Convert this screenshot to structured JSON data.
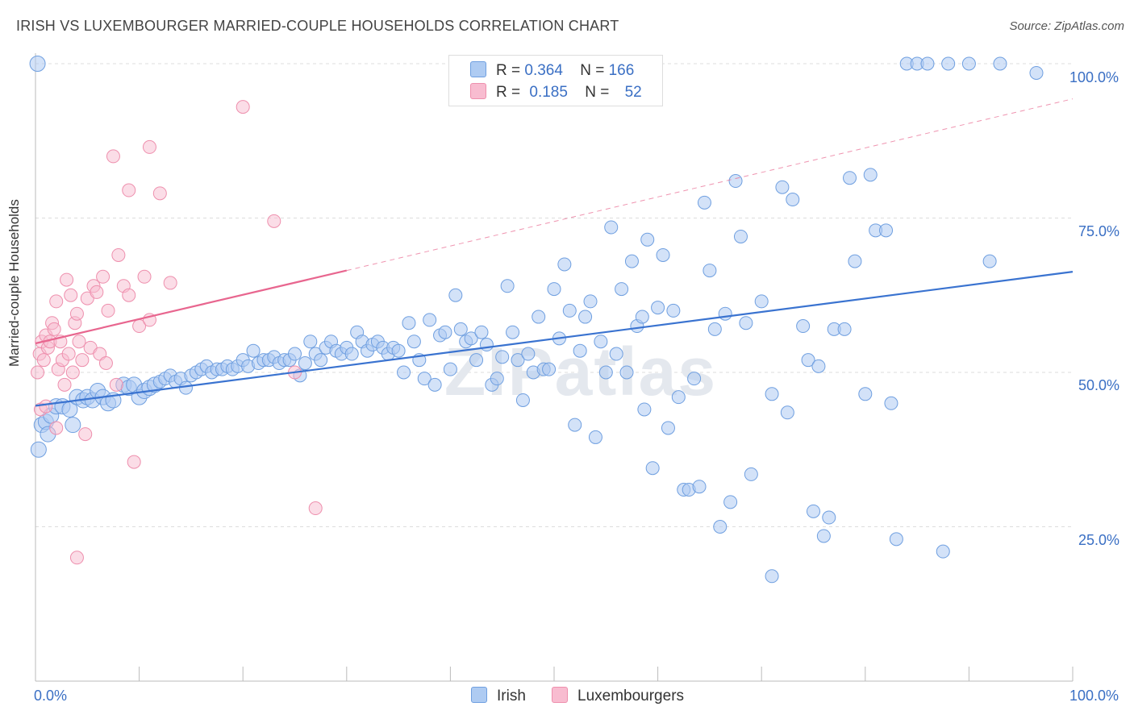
{
  "title": "IRISH VS LUXEMBOURGER MARRIED-COUPLE HOUSEHOLDS CORRELATION CHART",
  "source": "Source: ZipAtlas.com",
  "watermark": "ZIPatlas",
  "legend": {
    "rows": [
      {
        "r_label": "R =",
        "r_value": "0.364",
        "n_label": "N =",
        "n_value": "166"
      },
      {
        "r_label": "R =",
        "r_value": "0.185",
        "n_label": "N =",
        "n_value": "52"
      }
    ]
  },
  "bottom_legend": [
    "Irish",
    "Luxembourgers"
  ],
  "colors": {
    "irish_fill": "#aecbf2",
    "irish_stroke": "#6f9fe0",
    "irish_line": "#3a73d0",
    "lux_fill": "#f8bcd0",
    "lux_stroke": "#ee8fad",
    "lux_line": "#e8668f",
    "tick_label": "#3a6fc4",
    "grid": "#dddddd"
  },
  "chart_data": {
    "type": "scatter",
    "xlabel": "",
    "ylabel": "Married-couple Households",
    "xlim": [
      0,
      100
    ],
    "ylim": [
      0,
      100
    ],
    "x_tick_labels": [
      "0.0%",
      "100.0%"
    ],
    "y_tick_labels": [
      "25.0%",
      "50.0%",
      "75.0%",
      "100.0%"
    ],
    "y_ticks": [
      25,
      50,
      75,
      100
    ],
    "grid": true,
    "series": [
      {
        "name": "Irish",
        "trend": {
          "x": [
            0,
            100
          ],
          "y": [
            44.6,
            66.3
          ]
        },
        "points": [
          [
            0.3,
            37.5
          ],
          [
            0.6,
            41.5
          ],
          [
            1,
            42
          ],
          [
            1.2,
            40
          ],
          [
            1.5,
            43
          ],
          [
            2,
            44.5
          ],
          [
            2.6,
            44.5
          ],
          [
            3.3,
            44
          ],
          [
            4,
            46
          ],
          [
            3.6,
            41.5
          ],
          [
            4.6,
            45.5
          ],
          [
            5,
            46
          ],
          [
            5.5,
            45.5
          ],
          [
            6,
            47
          ],
          [
            6.5,
            46
          ],
          [
            7,
            45
          ],
          [
            7.5,
            45.5
          ],
          [
            8.5,
            48
          ],
          [
            9,
            47.5
          ],
          [
            9.5,
            48
          ],
          [
            10,
            46
          ],
          [
            10.5,
            47
          ],
          [
            11,
            47.5
          ],
          [
            11.5,
            48
          ],
          [
            12,
            48.5
          ],
          [
            12.5,
            49
          ],
          [
            13,
            49.5
          ],
          [
            13.5,
            48.5
          ],
          [
            14,
            49
          ],
          [
            14.5,
            47.5
          ],
          [
            15,
            49.5
          ],
          [
            15.5,
            50
          ],
          [
            16,
            50.5
          ],
          [
            16.5,
            51
          ],
          [
            17,
            50
          ],
          [
            17.5,
            50.5
          ],
          [
            18,
            50.5
          ],
          [
            18.5,
            51
          ],
          [
            19,
            50.5
          ],
          [
            19.5,
            51
          ],
          [
            20,
            52
          ],
          [
            20.5,
            51
          ],
          [
            21,
            53.5
          ],
          [
            21.5,
            51.5
          ],
          [
            22,
            52
          ],
          [
            22.5,
            52
          ],
          [
            23,
            52.5
          ],
          [
            23.5,
            51.5
          ],
          [
            24,
            52
          ],
          [
            24.5,
            52
          ],
          [
            25,
            53
          ],
          [
            25.5,
            49.5
          ],
          [
            26,
            51.5
          ],
          [
            26.5,
            55
          ],
          [
            27,
            53
          ],
          [
            27.5,
            52
          ],
          [
            28,
            54
          ],
          [
            28.5,
            55
          ],
          [
            29,
            53.5
          ],
          [
            29.5,
            53
          ],
          [
            30,
            54
          ],
          [
            30.5,
            53
          ],
          [
            31,
            56.5
          ],
          [
            31.5,
            55
          ],
          [
            32,
            53.5
          ],
          [
            32.5,
            54.5
          ],
          [
            33,
            55
          ],
          [
            33.5,
            54
          ],
          [
            34,
            53
          ],
          [
            34.5,
            54
          ],
          [
            35,
            53.5
          ],
          [
            35.5,
            50
          ],
          [
            36,
            58
          ],
          [
            36.5,
            55
          ],
          [
            37,
            52
          ],
          [
            37.5,
            49
          ],
          [
            38,
            58.5
          ],
          [
            38.5,
            48
          ],
          [
            39,
            56
          ],
          [
            39.5,
            56.5
          ],
          [
            40,
            50.5
          ],
          [
            40.5,
            62.5
          ],
          [
            41,
            57
          ],
          [
            41.5,
            55
          ],
          [
            42,
            55.5
          ],
          [
            42.5,
            52
          ],
          [
            43,
            56.5
          ],
          [
            43.5,
            54.5
          ],
          [
            44,
            48
          ],
          [
            44.5,
            49
          ],
          [
            45,
            52.5
          ],
          [
            45.5,
            64
          ],
          [
            46,
            56.5
          ],
          [
            46.5,
            52
          ],
          [
            47,
            45.5
          ],
          [
            47.5,
            53
          ],
          [
            48,
            50
          ],
          [
            48.5,
            59
          ],
          [
            49,
            50.5
          ],
          [
            49.5,
            50.5
          ],
          [
            50,
            63.5
          ],
          [
            50.5,
            55.5
          ],
          [
            51,
            67.5
          ],
          [
            51.5,
            60
          ],
          [
            52,
            41.5
          ],
          [
            52.5,
            53.5
          ],
          [
            53,
            59
          ],
          [
            53.5,
            61.5
          ],
          [
            54,
            39.5
          ],
          [
            54.5,
            55
          ],
          [
            55,
            50
          ],
          [
            55.5,
            73.5
          ],
          [
            56,
            53
          ],
          [
            56.5,
            63.5
          ],
          [
            57,
            50
          ],
          [
            57.5,
            68
          ],
          [
            58,
            57.5
          ],
          [
            58.5,
            59
          ],
          [
            58.7,
            44
          ],
          [
            59,
            71.5
          ],
          [
            59.5,
            34.5
          ],
          [
            60,
            60.5
          ],
          [
            60.5,
            69
          ],
          [
            61,
            41
          ],
          [
            61.5,
            60
          ],
          [
            62,
            46
          ],
          [
            62.5,
            31
          ],
          [
            63,
            31
          ],
          [
            63.5,
            49
          ],
          [
            64,
            31.5
          ],
          [
            64.5,
            77.5
          ],
          [
            65,
            66.5
          ],
          [
            65.5,
            57
          ],
          [
            66,
            25
          ],
          [
            66.5,
            59.5
          ],
          [
            67,
            29
          ],
          [
            67.5,
            81
          ],
          [
            68,
            72
          ],
          [
            68.5,
            58
          ],
          [
            69,
            33.5
          ],
          [
            70,
            61.5
          ],
          [
            71,
            46.5
          ],
          [
            72,
            80
          ],
          [
            72.5,
            43.5
          ],
          [
            73,
            78
          ],
          [
            74,
            57.5
          ],
          [
            74.5,
            52
          ],
          [
            75,
            27.5
          ],
          [
            75.5,
            51
          ],
          [
            76,
            23.5
          ],
          [
            76.5,
            26.5
          ],
          [
            77,
            57
          ],
          [
            78,
            57
          ],
          [
            78.5,
            81.5
          ],
          [
            79,
            68
          ],
          [
            80,
            46.5
          ],
          [
            80.5,
            82
          ],
          [
            81,
            73
          ],
          [
            82,
            73
          ],
          [
            82.5,
            45
          ],
          [
            83,
            23
          ],
          [
            84,
            100
          ],
          [
            85,
            100
          ],
          [
            86,
            100
          ],
          [
            87.5,
            21
          ],
          [
            88,
            100
          ],
          [
            90,
            100
          ],
          [
            92,
            68
          ],
          [
            93,
            100
          ],
          [
            96.5,
            98.5
          ],
          [
            71,
            17
          ],
          [
            0.2,
            100
          ]
        ]
      },
      {
        "name": "Luxembourgers",
        "trend": {
          "x": [
            0,
            30
          ],
          "y": [
            54.7,
            66.5
          ]
        },
        "dashed": {
          "x": [
            30,
            100
          ],
          "y": [
            66.5,
            94.3
          ]
        },
        "points": [
          [
            0.2,
            50
          ],
          [
            0.4,
            53
          ],
          [
            0.6,
            55
          ],
          [
            0.8,
            52
          ],
          [
            1,
            56
          ],
          [
            1.2,
            54
          ],
          [
            1.4,
            55
          ],
          [
            1.6,
            58
          ],
          [
            1.8,
            57
          ],
          [
            2,
            61.5
          ],
          [
            2.2,
            50.5
          ],
          [
            2.4,
            55
          ],
          [
            2.6,
            52
          ],
          [
            2.8,
            48
          ],
          [
            3,
            65
          ],
          [
            3.2,
            53
          ],
          [
            3.4,
            62.5
          ],
          [
            3.6,
            50
          ],
          [
            3.8,
            58
          ],
          [
            4,
            59.5
          ],
          [
            4.2,
            55
          ],
          [
            4.5,
            52
          ],
          [
            4.8,
            40
          ],
          [
            5,
            62
          ],
          [
            5.3,
            54
          ],
          [
            5.6,
            64
          ],
          [
            5.9,
            63
          ],
          [
            6.2,
            53
          ],
          [
            6.5,
            65.5
          ],
          [
            6.8,
            51.5
          ],
          [
            7,
            60
          ],
          [
            7.5,
            85
          ],
          [
            7.8,
            48
          ],
          [
            8,
            69
          ],
          [
            8.5,
            64
          ],
          [
            9,
            79.5
          ],
          [
            9,
            62.5
          ],
          [
            9.5,
            35.5
          ],
          [
            10,
            57.5
          ],
          [
            10.5,
            65.5
          ],
          [
            11,
            86.5
          ],
          [
            11,
            58.5
          ],
          [
            12,
            79
          ],
          [
            13,
            64.5
          ],
          [
            20,
            93
          ],
          [
            23,
            74.5
          ],
          [
            25,
            50
          ],
          [
            27,
            28
          ],
          [
            0.5,
            44
          ],
          [
            2,
            41
          ],
          [
            1,
            44.5
          ],
          [
            4,
            20
          ]
        ]
      }
    ]
  }
}
